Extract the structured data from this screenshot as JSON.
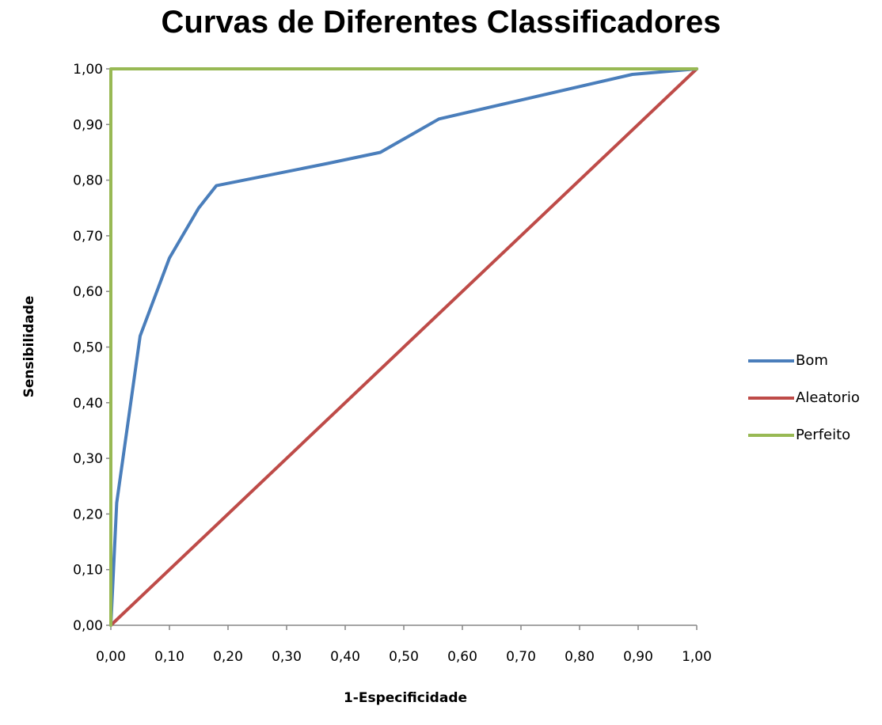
{
  "chart_data": {
    "type": "line",
    "title": "Curvas de Diferentes Classificadores",
    "xlabel": "1-Especificidade",
    "ylabel": "Sensibilidade",
    "xlim": [
      0,
      1
    ],
    "ylim": [
      0,
      1
    ],
    "x_ticks": [
      "0,00",
      "0,10",
      "0,20",
      "0,30",
      "0,40",
      "0,50",
      "0,60",
      "0,70",
      "0,80",
      "0,90",
      "1,00"
    ],
    "y_ticks": [
      "0,00",
      "0,10",
      "0,20",
      "0,30",
      "0,40",
      "0,50",
      "0,60",
      "0,70",
      "0,80",
      "0,90",
      "1,00"
    ],
    "grid": false,
    "legend_position": "right",
    "series": [
      {
        "name": "Bom",
        "color": "#4a7ebb",
        "points": [
          [
            0,
            0
          ],
          [
            0.01,
            0.22
          ],
          [
            0.05,
            0.52
          ],
          [
            0.1,
            0.66
          ],
          [
            0.15,
            0.75
          ],
          [
            0.18,
            0.79
          ],
          [
            0.37,
            0.83
          ],
          [
            0.46,
            0.85
          ],
          [
            0.56,
            0.91
          ],
          [
            0.89,
            0.99
          ],
          [
            1.0,
            1.0
          ]
        ]
      },
      {
        "name": "Aleatorio",
        "color": "#be4b48",
        "points": [
          [
            0,
            0
          ],
          [
            1,
            1
          ]
        ]
      },
      {
        "name": "Perfeito",
        "color": "#98b954",
        "points": [
          [
            0,
            0
          ],
          [
            0,
            1
          ],
          [
            1,
            1
          ]
        ]
      }
    ]
  }
}
